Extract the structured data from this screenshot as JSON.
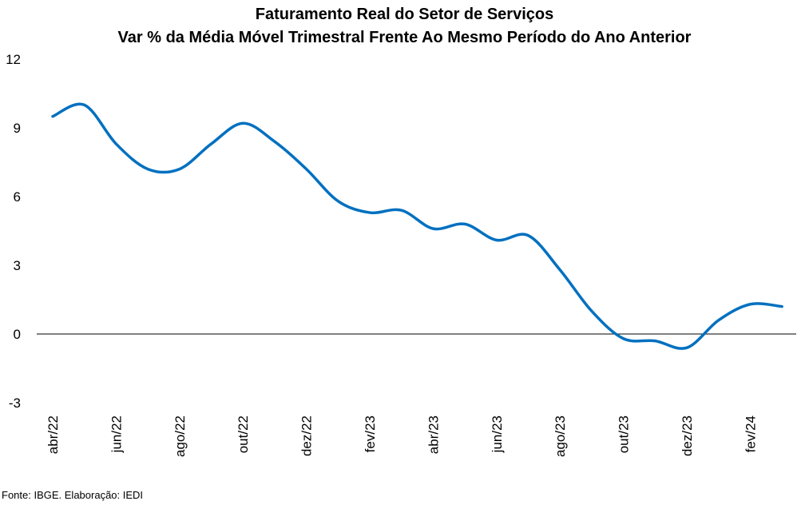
{
  "chart_data": {
    "type": "line",
    "title": "Faturamento Real do Setor de Serviços",
    "subtitle": "Var % da Média Móvel Trimestral Frente Ao Mesmo Período do Ano Anterior",
    "xlabel": "",
    "ylabel": "",
    "ylim": [
      -3,
      12
    ],
    "yticks": [
      "12",
      "9",
      "6",
      "3",
      "0",
      "-3"
    ],
    "ytick_values": [
      12,
      9,
      6,
      3,
      0,
      -3
    ],
    "tick_labels": [
      "abr/22",
      "jun/22",
      "ago/22",
      "out/22",
      "dez/22",
      "fev/23",
      "abr/23",
      "jun/23",
      "ago/23",
      "out/23",
      "dez/23",
      "fev/24"
    ],
    "x": [
      "abr/22",
      "mai/22",
      "jun/22",
      "jul/22",
      "ago/22",
      "set/22",
      "out/22",
      "nov/22",
      "dez/22",
      "jan/23",
      "fev/23",
      "mar/23",
      "abr/23",
      "mai/23",
      "jun/23",
      "jul/23",
      "ago/23",
      "set/23",
      "out/23",
      "nov/23",
      "dez/23",
      "jan/24",
      "fev/24",
      "mar/24"
    ],
    "series": [
      {
        "name": "",
        "color": "#0070C0",
        "values": [
          9.5,
          10.0,
          8.3,
          7.2,
          7.2,
          8.3,
          9.2,
          8.4,
          7.2,
          5.8,
          5.3,
          5.4,
          4.6,
          4.8,
          4.1,
          4.3,
          2.8,
          1.0,
          -0.2,
          -0.3,
          -0.6,
          0.6,
          1.3,
          1.2
        ]
      }
    ],
    "grid": false,
    "legend": "none"
  },
  "source": "Fonte: IBGE. Elaboração: IEDI"
}
